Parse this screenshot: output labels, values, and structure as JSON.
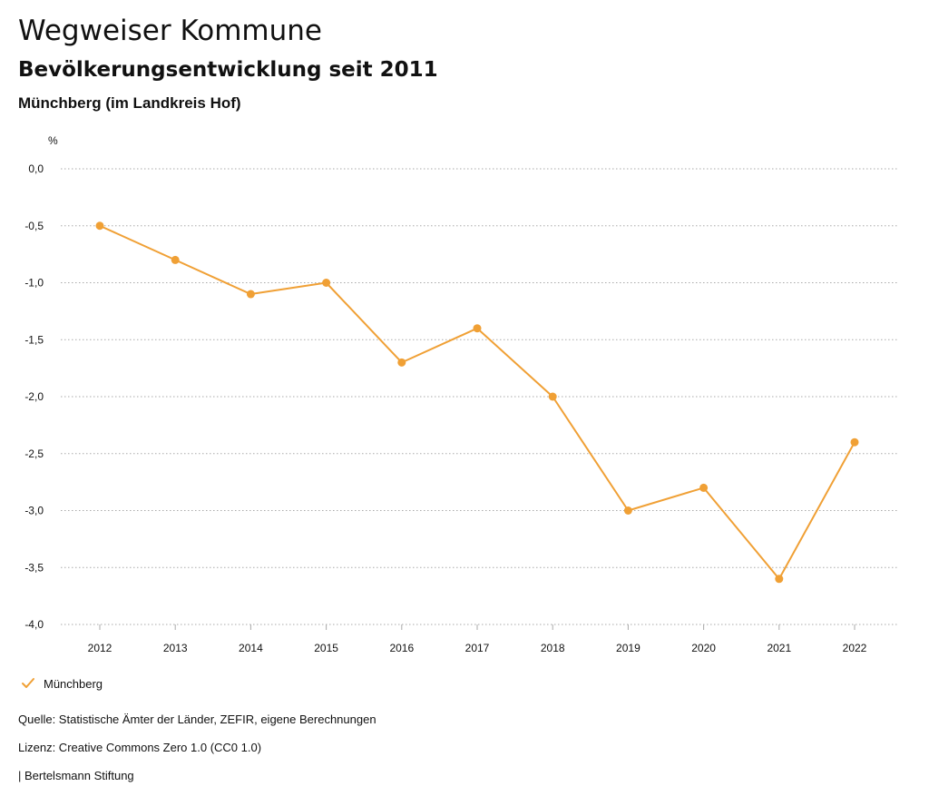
{
  "header": {
    "title": "Wegweiser Kommune",
    "subtitle": "Bevölkerungsentwicklung seit 2011",
    "region": "Münchberg (im Landkreis Hof)"
  },
  "footer": {
    "source": "Quelle: Statistische Ämter der Länder, ZEFIR, eigene Berechnungen",
    "license": "Lizenz: Creative Commons Zero 1.0 (CC0 1.0)",
    "org": "| Bertelsmann Stiftung"
  },
  "colors": {
    "series": "#f0a035",
    "grid": "#aaaaaa"
  },
  "chart_data": {
    "type": "line",
    "ylabel": "%",
    "ylim": [
      -4.0,
      0.0
    ],
    "yticks": [
      "0,0",
      "-0,5",
      "-1,0",
      "-1,5",
      "-2,0",
      "-2,5",
      "-3,0",
      "-3,5",
      "-4,0"
    ],
    "ytick_values": [
      0.0,
      -0.5,
      -1.0,
      -1.5,
      -2.0,
      -2.5,
      -3.0,
      -3.5,
      -4.0
    ],
    "x": [
      "2012",
      "2013",
      "2014",
      "2015",
      "2016",
      "2017",
      "2018",
      "2019",
      "2020",
      "2021",
      "2022"
    ],
    "grid": "horizontal dotted",
    "legend_position": "bottom-left",
    "series": [
      {
        "name": "Münchberg",
        "values": [
          -0.5,
          -0.8,
          -1.1,
          -1.0,
          -1.7,
          -1.4,
          -2.0,
          -3.0,
          -2.8,
          -3.6,
          -2.4
        ]
      }
    ]
  }
}
